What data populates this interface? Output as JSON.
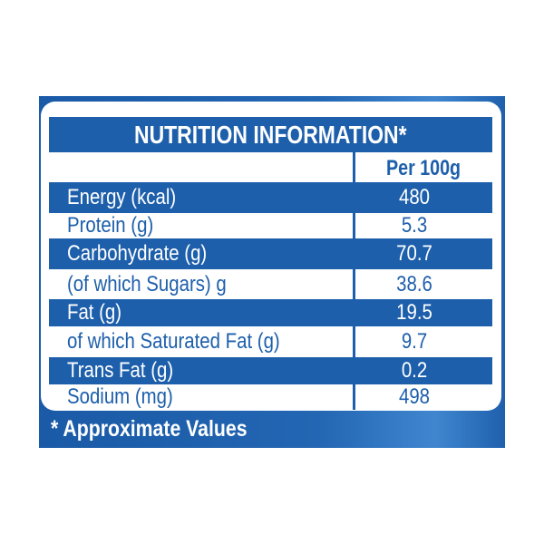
{
  "title": "NUTRITION INFORMATION*",
  "column_header": "Per 100g",
  "rows": [
    {
      "label": "Energy (kcal)",
      "value": "480"
    },
    {
      "label": "Protein (g)",
      "value": "5.3"
    },
    {
      "label": "Carbohydrate (g)",
      "value": "70.7"
    },
    {
      "label": "(of which Sugars) g",
      "value": "38.6"
    },
    {
      "label": "Fat (g)",
      "value": "19.5"
    },
    {
      "label": "of which Saturated Fat (g)",
      "value": "9.7"
    },
    {
      "label": "Trans Fat (g)",
      "value": "0.2"
    },
    {
      "label": "Sodium (mg)",
      "value": "498"
    }
  ],
  "footnote": "* Approximate Values",
  "colors": {
    "brand_blue": "#1d5fab",
    "background": "#ffffff"
  }
}
